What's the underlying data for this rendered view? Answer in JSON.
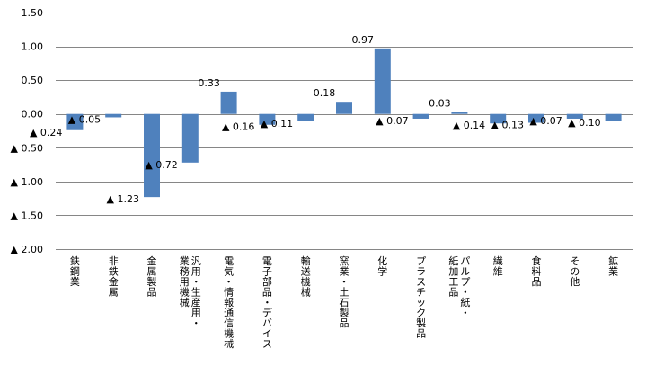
{
  "chart_data": {
    "type": "bar",
    "title": "",
    "xlabel": "",
    "ylabel": "",
    "ylim": [
      -2.0,
      1.5
    ],
    "yticks": [
      1.5,
      1.0,
      0.5,
      0.0,
      -0.5,
      -1.0,
      -1.5,
      -2.0
    ],
    "ytick_labels": [
      "1.50",
      "1.00",
      "0.50",
      "0.00",
      "▲ 0.50",
      "▲ 1.00",
      "▲ 1.50",
      "▲ 2.00"
    ],
    "grid": true,
    "legend": "none",
    "bar_color": "#4F81BD",
    "categories": [
      "鉄鋼業",
      "非鉄金属",
      "金属製品",
      "汎用・生産用・業務用機械",
      "電気・情報通信機械",
      "電子部品・デバイス",
      "輸送機械",
      "窯業・土石製品",
      "化学",
      "プラスチック製品",
      "パルプ・紙・紙加工品",
      "繊維",
      "食料品",
      "その他",
      "鉱業"
    ],
    "category_lines": [
      [
        "鉄鋼業"
      ],
      [
        "非鉄金属"
      ],
      [
        "金属製品"
      ],
      [
        "汎用・生産用・",
        "業務用機械"
      ],
      [
        "電気・情報通信機械"
      ],
      [
        "電子部品・デバイス"
      ],
      [
        "輸送機械"
      ],
      [
        "窯業・土石製品"
      ],
      [
        "化学"
      ],
      [
        "プラスチック製品"
      ],
      [
        "パルプ・紙・",
        "紙加工品"
      ],
      [
        "繊維"
      ],
      [
        "食料品"
      ],
      [
        "その他"
      ],
      [
        "鉱業"
      ]
    ],
    "values": [
      -0.24,
      -0.05,
      -1.23,
      -0.72,
      0.33,
      -0.16,
      -0.11,
      0.18,
      0.97,
      -0.07,
      0.03,
      -0.14,
      -0.13,
      -0.07,
      -0.1
    ],
    "data_labels": [
      "▲ 0.24",
      "▲ 0.05",
      "▲ 1.23",
      "▲ 0.72",
      "0.33",
      "▲ 0.16",
      "▲ 0.11",
      "0.18",
      "0.97",
      "▲ 0.07",
      "0.03",
      "▲ 0.14",
      "▲ 0.13",
      "▲ 0.07",
      "▲ 0.10"
    ]
  }
}
